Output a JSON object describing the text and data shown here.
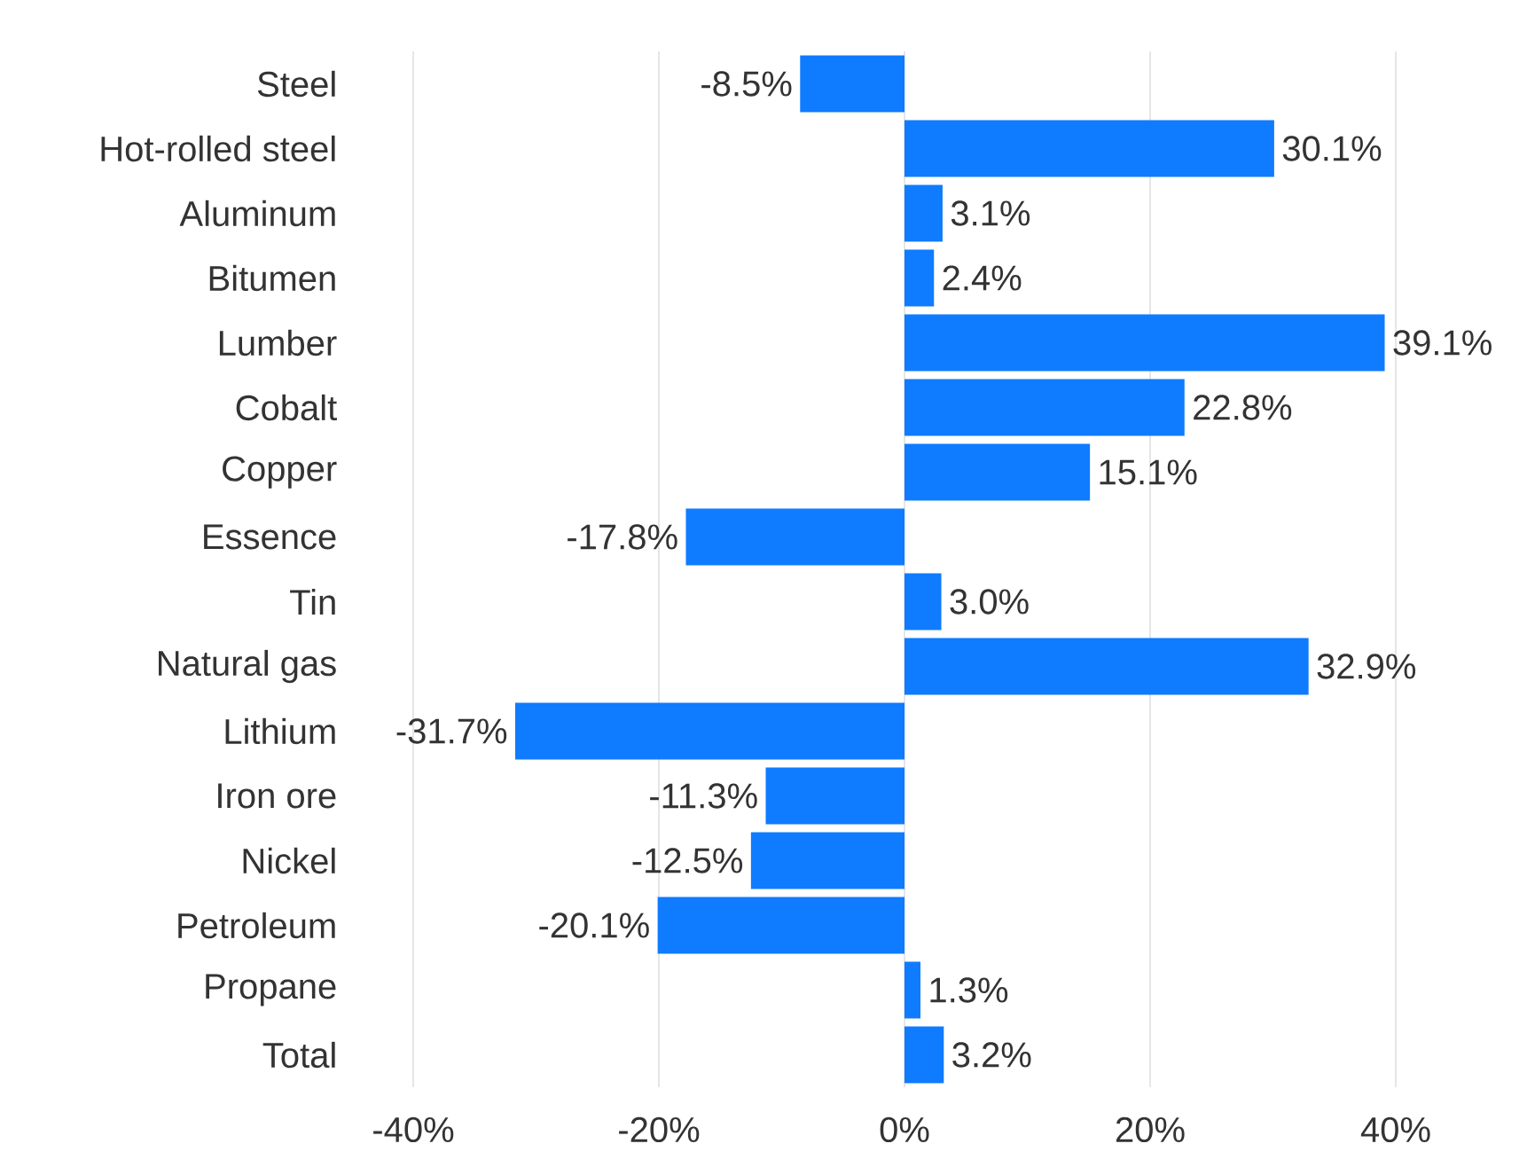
{
  "chart_data": {
    "type": "bar",
    "orientation": "horizontal",
    "categories": [
      "Steel",
      "Hot-rolled steel",
      "Aluminum",
      "Bitumen",
      "Lumber",
      "Cobalt",
      "Copper",
      "Essence",
      "Tin",
      "Natural gas",
      "Lithium",
      "Iron ore",
      "Nickel",
      "Petroleum",
      "Propane",
      "Total"
    ],
    "values": [
      -8.5,
      30.1,
      3.1,
      2.4,
      39.1,
      22.8,
      15.1,
      -17.8,
      3.0,
      32.9,
      -31.7,
      -11.3,
      -12.5,
      -20.1,
      1.3,
      3.2
    ],
    "value_labels": [
      "-8.5%",
      "30.1%",
      "3.1%",
      "2.4%",
      "39.1%",
      "22.8%",
      "15.1%",
      "-17.8%",
      "3.0%",
      "32.9%",
      "-31.7%",
      "-11.3%",
      "-12.5%",
      "-20.1%",
      "1.3%",
      "3.2%"
    ],
    "color": "#0f7bff",
    "xlim": [
      -40,
      40
    ],
    "xticks": [
      {
        "value": -40,
        "label": "-40%"
      },
      {
        "value": -20,
        "label": "-20%"
      },
      {
        "value": 0,
        "label": "0%"
      },
      {
        "value": 20,
        "label": "20%"
      },
      {
        "value": 40,
        "label": "40%"
      }
    ],
    "grid": "x"
  }
}
